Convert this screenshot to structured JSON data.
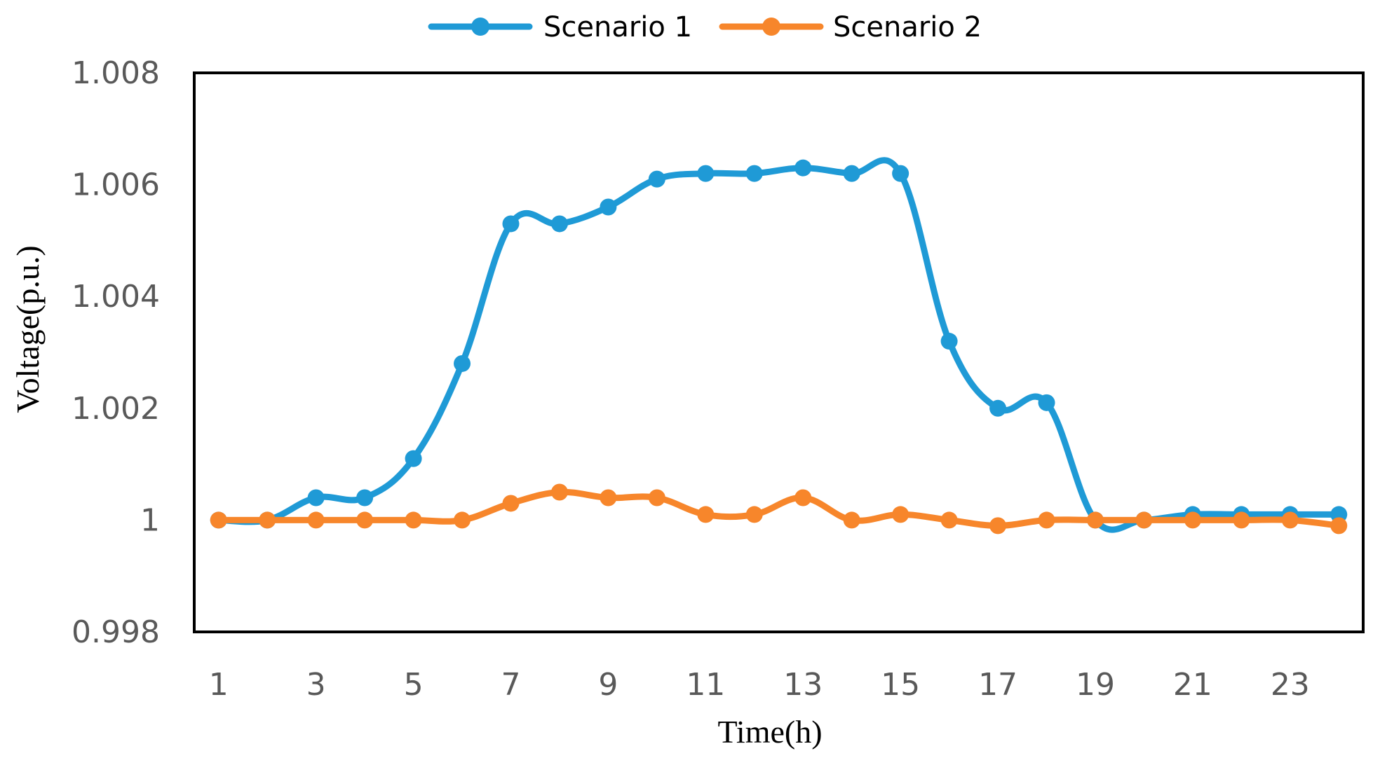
{
  "chart_data": {
    "type": "line",
    "title": "",
    "xlabel": "Time(h)",
    "ylabel": "Voltage(p.u.)",
    "x": [
      1,
      2,
      3,
      4,
      5,
      6,
      7,
      8,
      9,
      10,
      11,
      12,
      13,
      14,
      15,
      16,
      17,
      18,
      19,
      20,
      21,
      22,
      23,
      24
    ],
    "x_tick_labels": [
      "1",
      "3",
      "5",
      "7",
      "9",
      "11",
      "13",
      "15",
      "17",
      "19",
      "21",
      "23"
    ],
    "x_tick_values": [
      1,
      3,
      5,
      7,
      9,
      11,
      13,
      15,
      17,
      19,
      21,
      23
    ],
    "xlim": [
      0.5,
      24.5
    ],
    "ylim": [
      0.998,
      1.008
    ],
    "y_tick_values": [
      0.998,
      1.0,
      1.002,
      1.004,
      1.006,
      1.008
    ],
    "y_tick_labels": [
      "0.998",
      "1",
      "1.002",
      "1.004",
      "1.006",
      "1.008"
    ],
    "legend_position": "top-center",
    "grid": false,
    "series": [
      {
        "name": "Scenario 1",
        "color": "#1F9AD6",
        "values": [
          1.0,
          1.0,
          1.0004,
          1.0004,
          1.0011,
          1.0028,
          1.0053,
          1.0053,
          1.0056,
          1.0061,
          1.0062,
          1.0062,
          1.0063,
          1.0062,
          1.0062,
          1.0032,
          1.002,
          1.0021,
          1.0,
          1.0,
          1.0001,
          1.0001,
          1.0001,
          1.0001
        ]
      },
      {
        "name": "Scenario 2",
        "color": "#F7862B",
        "values": [
          1.0,
          1.0,
          1.0,
          1.0,
          1.0,
          1.0,
          1.0003,
          1.0005,
          1.0004,
          1.0004,
          1.0001,
          1.0001,
          1.0004,
          1.0,
          1.0001,
          1.0,
          0.9999,
          1.0,
          1.0,
          1.0,
          1.0,
          1.0,
          1.0,
          0.9999
        ]
      }
    ]
  }
}
